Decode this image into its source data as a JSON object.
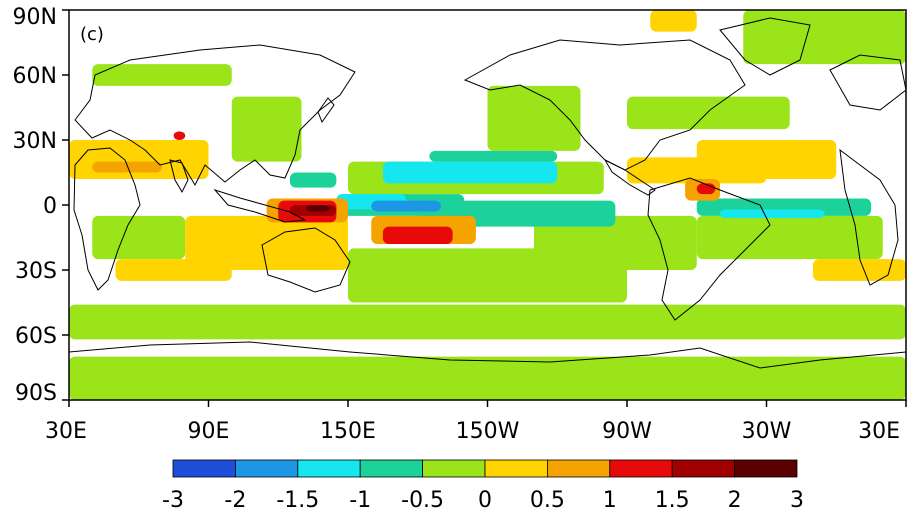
{
  "panel_label": "(c)",
  "colors": {
    "anomaly_neg_3_2": "#1f4fd8",
    "anomaly_neg_2_15": "#1e96e6",
    "anomaly_neg_15_1": "#15e6f0",
    "anomaly_neg_1_05": "#1dd29a",
    "anomaly_neg_05_0": "#9be41a",
    "anomaly_0_05": "#ffd400",
    "anomaly_05_1": "#f5a300",
    "anomaly_1_15": "#e80a0a",
    "anomaly_15_2": "#a00000",
    "anomaly_2_3": "#5a0000",
    "coastline": "#000000"
  },
  "chart_data": {
    "type": "heatmap",
    "projection": "equirectangular",
    "x_range_deg_east": [
      30,
      390
    ],
    "y_range_deg": [
      -90,
      90
    ],
    "x_ticks": [
      "30E",
      "90E",
      "150E",
      "150W",
      "90W",
      "30W",
      "30E"
    ],
    "x_tick_values": [
      30,
      90,
      150,
      210,
      270,
      330,
      390
    ],
    "y_ticks": [
      "90N",
      "60N",
      "30N",
      "0",
      "30S",
      "60S",
      "90S"
    ],
    "y_tick_values": [
      90,
      60,
      30,
      0,
      -30,
      -60,
      -90
    ],
    "colorbar": {
      "labels": [
        "-3",
        "-2",
        "-1.5",
        "-1",
        "-0.5",
        "0",
        "0.5",
        "1",
        "1.5",
        "2",
        "3"
      ],
      "bounds": [
        -3,
        -2,
        -1.5,
        -1,
        -0.5,
        0,
        0.5,
        1,
        1.5,
        2,
        3
      ],
      "colors": [
        "#1f4fd8",
        "#1e96e6",
        "#15e6f0",
        "#1dd29a",
        "#9be41a",
        "#ffd400",
        "#f5a300",
        "#e80a0a",
        "#a00000",
        "#5a0000"
      ]
    },
    "regions": [
      {
        "level": -0.25,
        "lon": [
          30,
          390
        ],
        "lat": [
          -90,
          -70
        ]
      },
      {
        "level": -0.25,
        "lon": [
          30,
          390
        ],
        "lat": [
          -62,
          -46
        ]
      },
      {
        "level": -0.25,
        "lon": [
          150,
          270
        ],
        "lat": [
          -20,
          -45
        ]
      },
      {
        "level": -0.25,
        "lon": [
          150,
          260
        ],
        "lat": [
          20,
          5
        ]
      },
      {
        "level": -0.25,
        "lon": [
          210,
          250
        ],
        "lat": [
          55,
          25
        ]
      },
      {
        "level": -0.25,
        "lon": [
          320,
          390
        ],
        "lat": [
          90,
          65
        ]
      },
      {
        "level": -0.25,
        "lon": [
          40,
          100
        ],
        "lat": [
          65,
          55
        ]
      },
      {
        "level": -0.25,
        "lon": [
          230,
          300
        ],
        "lat": [
          -5,
          -30
        ]
      },
      {
        "level": -0.25,
        "lon": [
          300,
          380
        ],
        "lat": [
          -5,
          -25
        ]
      },
      {
        "level": -0.25,
        "lon": [
          40,
          80
        ],
        "lat": [
          -5,
          -25
        ]
      },
      {
        "level": -0.25,
        "lon": [
          100,
          130
        ],
        "lat": [
          50,
          20
        ]
      },
      {
        "level": -0.25,
        "lon": [
          270,
          340
        ],
        "lat": [
          50,
          35
        ]
      },
      {
        "level": -0.25,
        "lon": [
          180,
          210
        ],
        "lat": [
          -30,
          -45
        ]
      },
      {
        "level": -0.75,
        "lon": [
          145,
          200
        ],
        "lat": [
          5,
          -5
        ]
      },
      {
        "level": -0.75,
        "lon": [
          180,
          265
        ],
        "lat": [
          2,
          -10
        ]
      },
      {
        "level": -0.75,
        "lon": [
          300,
          375
        ],
        "lat": [
          3,
          -5
        ]
      },
      {
        "level": -0.75,
        "lon": [
          185,
          240
        ],
        "lat": [
          25,
          20
        ]
      },
      {
        "level": -0.75,
        "lon": [
          125,
          145
        ],
        "lat": [
          15,
          8
        ]
      },
      {
        "level": -1.25,
        "lon": [
          165,
          240
        ],
        "lat": [
          20,
          10
        ]
      },
      {
        "level": -1.25,
        "lon": [
          310,
          355
        ],
        "lat": [
          -2,
          -6
        ]
      },
      {
        "level": -1.25,
        "lon": [
          145,
          175
        ],
        "lat": [
          5,
          -2
        ]
      },
      {
        "level": -1.75,
        "lon": [
          160,
          190
        ],
        "lat": [
          2,
          -3
        ]
      },
      {
        "level": 0.25,
        "lon": [
          300,
          360
        ],
        "lat": [
          30,
          12
        ]
      },
      {
        "level": 0.25,
        "lon": [
          30,
          90
        ],
        "lat": [
          30,
          12
        ]
      },
      {
        "level": 0.25,
        "lon": [
          130,
          150
        ],
        "lat": [
          -20,
          -30
        ]
      },
      {
        "level": 0.25,
        "lon": [
          80,
          150
        ],
        "lat": [
          -5,
          -30
        ]
      },
      {
        "level": 0.25,
        "lon": [
          270,
          330
        ],
        "lat": [
          22,
          10
        ]
      },
      {
        "level": 0.25,
        "lon": [
          280,
          300
        ],
        "lat": [
          90,
          80
        ]
      },
      {
        "level": 0.25,
        "lon": [
          50,
          100
        ],
        "lat": [
          -25,
          -35
        ]
      },
      {
        "level": 0.25,
        "lon": [
          350,
          390
        ],
        "lat": [
          -25,
          -35
        ]
      },
      {
        "level": 0.75,
        "lon": [
          40,
          70
        ],
        "lat": [
          20,
          15
        ]
      },
      {
        "level": 0.75,
        "lon": [
          160,
          205
        ],
        "lat": [
          -5,
          -18
        ]
      },
      {
        "level": 0.75,
        "lon": [
          115,
          150
        ],
        "lat": [
          3,
          -8
        ]
      },
      {
        "level": 0.75,
        "lon": [
          295,
          310
        ],
        "lat": [
          12,
          2
        ]
      },
      {
        "level": 1.25,
        "lon": [
          120,
          145
        ],
        "lat": [
          2,
          -8
        ]
      },
      {
        "level": 1.25,
        "lon": [
          165,
          195
        ],
        "lat": [
          -10,
          -18
        ]
      },
      {
        "level": 1.25,
        "lon": [
          300,
          308
        ],
        "lat": [
          10,
          5
        ]
      },
      {
        "level": 1.25,
        "lon": [
          75,
          80
        ],
        "lat": [
          34,
          30
        ]
      },
      {
        "level": 1.75,
        "lon": [
          125,
          145
        ],
        "lat": [
          0,
          -5
        ]
      },
      {
        "level": 2.5,
        "lon": [
          132,
          142
        ],
        "lat": [
          0,
          -3
        ]
      }
    ]
  }
}
